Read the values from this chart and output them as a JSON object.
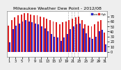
{
  "title": "Milwaukee Weather Dew Point - 2012/08",
  "high_values": [
    52,
    62,
    68,
    72,
    74,
    76,
    76,
    74,
    72,
    72,
    70,
    68,
    65,
    62,
    60,
    58,
    55,
    58,
    60,
    62,
    65,
    68,
    70,
    62,
    55,
    52,
    50,
    55,
    60,
    62,
    38
  ],
  "low_values": [
    18,
    45,
    52,
    56,
    60,
    62,
    60,
    58,
    56,
    54,
    50,
    46,
    40,
    35,
    30,
    28,
    22,
    28,
    35,
    45,
    50,
    54,
    56,
    46,
    36,
    28,
    26,
    30,
    40,
    44,
    15
  ],
  "bar_width": 0.42,
  "high_color": "#dd2222",
  "low_color": "#2222cc",
  "bg_color": "#eeeeee",
  "plot_bg": "#ffffff",
  "ylim_min": -10,
  "ylim_max": 80,
  "yticks": [
    0,
    10,
    20,
    30,
    40,
    50,
    60,
    70
  ],
  "tick_fontsize": 3.5,
  "title_fontsize": 4.5,
  "legend_high": "High",
  "legend_low": "Low",
  "dashed_lines_at": [
    18.5,
    19.5,
    20.5,
    21.5
  ],
  "n_bars": 31,
  "xtick_step": 2
}
